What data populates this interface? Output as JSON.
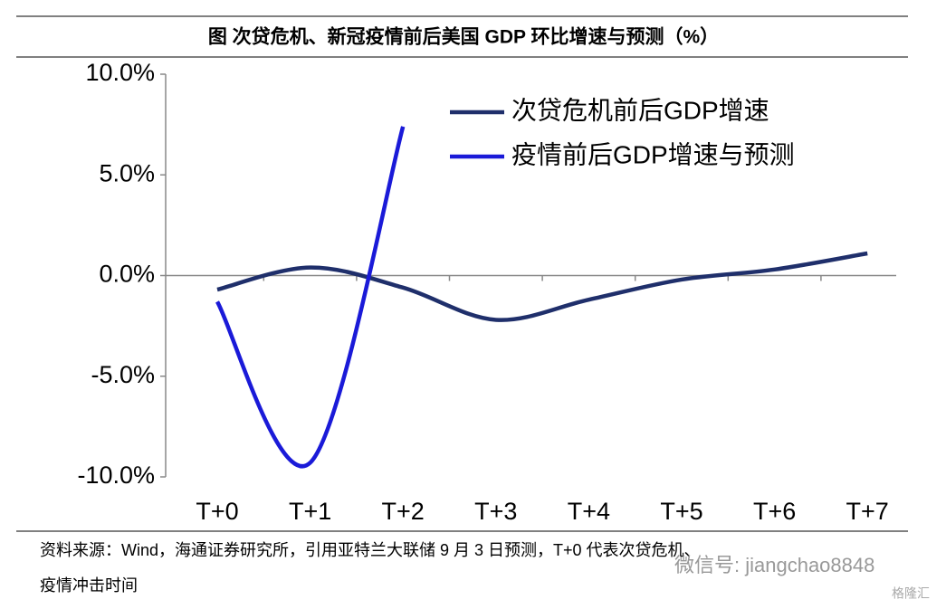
{
  "chart_data": {
    "type": "line",
    "title": "图  次贷危机、新冠疫情前后美国 GDP 环比增速与预测（%）",
    "categories": [
      "T+0",
      "T+1",
      "T+2",
      "T+3",
      "T+4",
      "T+5",
      "T+6",
      "T+7"
    ],
    "series": [
      {
        "name": "次贷危机前后GDP增速",
        "color": "#1f2f6b",
        "values": [
          -0.7,
          0.4,
          -0.6,
          -2.2,
          -1.2,
          -0.2,
          0.3,
          1.1
        ]
      },
      {
        "name": "疫情前后GDP增速与预测",
        "color": "#1a1ad8",
        "values": [
          -1.3,
          -9.3,
          7.4,
          null,
          null,
          null,
          null,
          null
        ]
      }
    ],
    "ylim": [
      -10,
      10
    ],
    "yticks": [
      {
        "value": -10,
        "label": "-10.0%"
      },
      {
        "value": -5,
        "label": "-5.0%"
      },
      {
        "value": 0,
        "label": "0.0%"
      },
      {
        "value": 5,
        "label": "5.0%"
      },
      {
        "value": 10,
        "label": "10.0%"
      }
    ],
    "legend": "upper right",
    "source": [
      "资料来源：Wind，海通证券研究所，引用亚特兰大联储 9 月 3 日预测，T+0 代表次贷危机、",
      "疫情冲击时间"
    ],
    "watermark": [
      "微信号: jiangchao8848",
      "格隆汇"
    ]
  }
}
